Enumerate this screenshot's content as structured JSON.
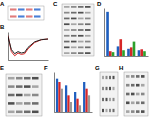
{
  "panels": [
    "A",
    "B",
    "C",
    "D",
    "E",
    "F",
    "G",
    "H"
  ],
  "chart_data": [
    {
      "type": "line",
      "x": [
        200,
        205,
        210,
        215,
        220,
        225,
        230,
        240,
        250,
        260
      ],
      "xlim": [
        200,
        260
      ],
      "ylim": [
        -30,
        10
      ],
      "tick_labels": false,
      "series": [
        {
          "color": "#d62728",
          "values": [
            5,
            -18,
            -24,
            -20,
            -22,
            -21,
            -14,
            -5,
            -1,
            0
          ]
        },
        {
          "color": "#222222",
          "values": [
            3,
            -15,
            -21,
            -18,
            -20,
            -19,
            -12,
            -4,
            -1,
            0
          ]
        }
      ]
    },
    {
      "type": "bar",
      "categories": [
        null,
        null,
        null,
        null
      ],
      "ylim": [
        0,
        100
      ],
      "tick_labels": false,
      "series": [
        {
          "color": "#1f5fbf",
          "values": [
            92,
            20,
            15,
            12
          ]
        },
        {
          "color": "#d62728",
          "values": [
            10,
            35,
            18,
            14
          ]
        },
        {
          "color": "#2ca02c",
          "values": [
            8,
            12,
            30,
            10
          ]
        }
      ]
    },
    {
      "type": "bar",
      "categories": [
        null,
        null,
        null,
        null
      ],
      "ylim": [
        0,
        1.2
      ],
      "tick_labels": false,
      "series": [
        {
          "color": "#1f5fbf",
          "values": [
            1.0,
            0.8,
            0.6,
            0.9
          ]
        },
        {
          "color": "#d62728",
          "values": [
            0.9,
            0.5,
            0.4,
            0.7
          ]
        },
        {
          "color": "#999999",
          "values": [
            0.7,
            0.3,
            0.2,
            0.5
          ]
        }
      ]
    }
  ]
}
